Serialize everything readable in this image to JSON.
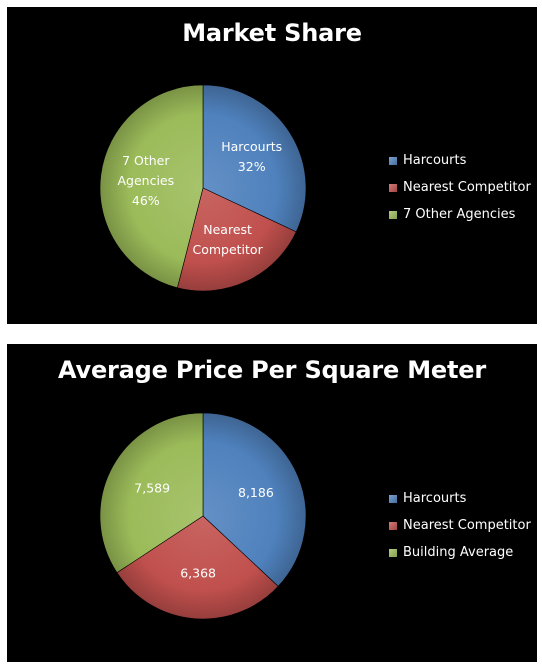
{
  "charts": {
    "market_share": {
      "title": "Market Share"
    },
    "price_per_sqm": {
      "title": "Average Price Per Square Meter"
    }
  },
  "chart_data": [
    {
      "type": "pie",
      "title": "Market Share",
      "slices": [
        {
          "label": "Harcourts",
          "value": 32,
          "color": "#4f81bd",
          "data_label": [
            "Harcourts",
            "32%"
          ]
        },
        {
          "label": "Nearest Competitor",
          "value": 22,
          "color": "#c0504d",
          "data_label": [
            "Nearest",
            "Competitor"
          ]
        },
        {
          "label": "7 Other Agencies",
          "value": 46,
          "color": "#9bbb59",
          "data_label": [
            "7 Other",
            "Agencies",
            "46%"
          ]
        }
      ],
      "legend": [
        "Harcourts",
        "Nearest Competitor",
        "7 Other Agencies"
      ],
      "legend_position": "right"
    },
    {
      "type": "pie",
      "title": "Average Price Per Square Meter",
      "slices": [
        {
          "label": "Harcourts",
          "value": 8186,
          "color": "#4f81bd",
          "data_label": [
            "8,186"
          ]
        },
        {
          "label": "Nearest Competitor",
          "value": 6368,
          "color": "#c0504d",
          "data_label": [
            "6,368"
          ]
        },
        {
          "label": "Building Average",
          "value": 7589,
          "color": "#9bbb59",
          "data_label": [
            "7,589"
          ]
        }
      ],
      "legend": [
        "Harcourts",
        "Nearest Competitor",
        "Building Average"
      ],
      "legend_position": "right"
    }
  ]
}
